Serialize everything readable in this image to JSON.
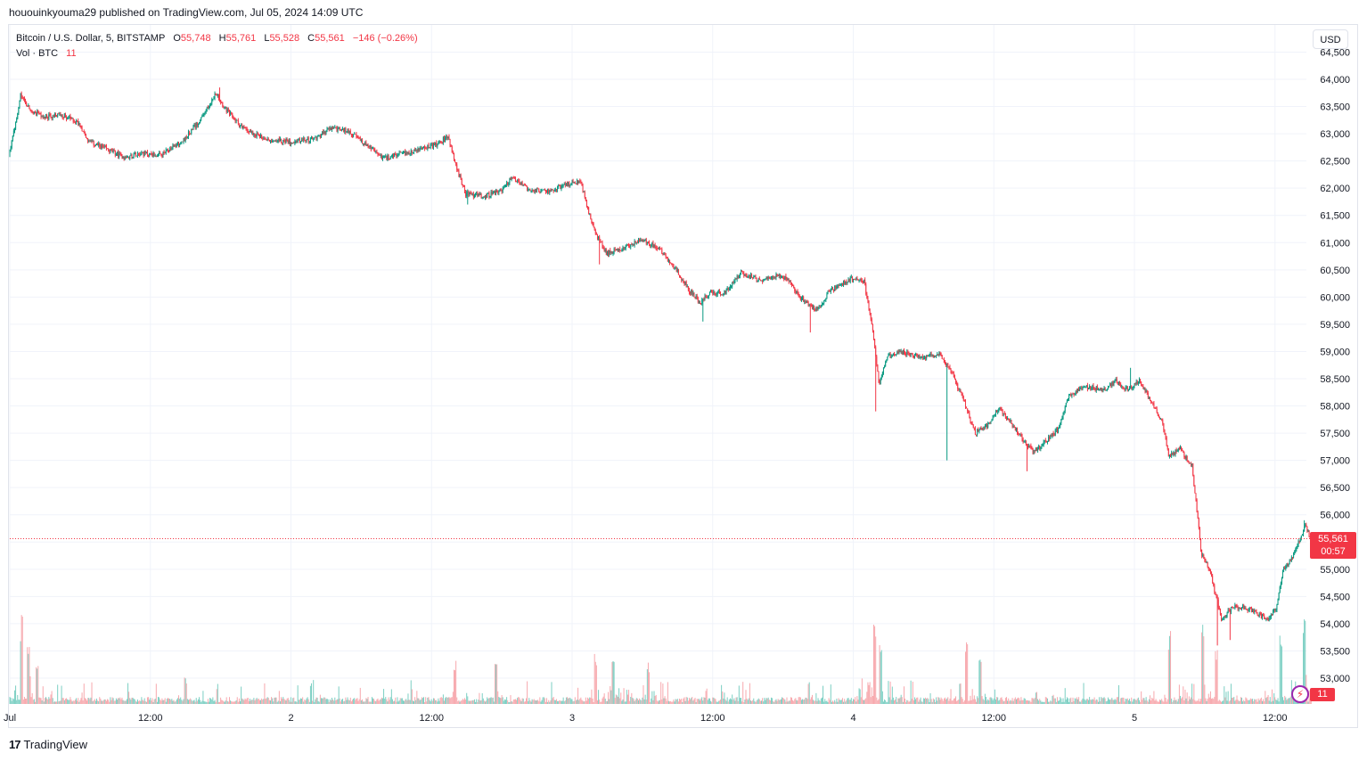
{
  "publish_line": "hououinkyouma29 published on TradingView.com, Jul 05, 2024 14:09 UTC",
  "legend": {
    "symbol": "Bitcoin / U.S. Dollar, 5, BITSTAMP",
    "o_label": "O",
    "o_value": "55,748",
    "h_label": "H",
    "h_value": "55,761",
    "l_label": "L",
    "l_value": "55,528",
    "c_label": "C",
    "c_value": "55,561",
    "change": "−146 (−0.26%)",
    "vol_label": "Vol · BTC",
    "vol_value": "11"
  },
  "currency": "USD",
  "last_price": {
    "value": "55,561",
    "countdown": "00:57"
  },
  "volume_badge": "11",
  "brand": {
    "logo": "17",
    "name": "TradingView"
  },
  "colors": {
    "up": "#089981",
    "down": "#f23645",
    "up_vol": "#7ccfc3",
    "down_vol": "#f7a8ad",
    "grid": "#f0f3fa"
  },
  "chart_data": {
    "type": "candlestick",
    "symbol": "BTCUSD",
    "exchange": "BITSTAMP",
    "interval": "5",
    "ylim": [
      52600,
      64500
    ],
    "yticks": [
      53000,
      53500,
      54000,
      54500,
      55000,
      55500,
      56000,
      56500,
      57000,
      57500,
      58000,
      58500,
      59000,
      59500,
      60000,
      60500,
      61000,
      61500,
      62000,
      62500,
      63000,
      63500,
      64000,
      64500
    ],
    "ytick_labels": [
      "53,000",
      "53,500",
      "54,000",
      "54,500",
      "55,000",
      "55,500",
      "56,000",
      "56,500",
      "57,000",
      "57,500",
      "58,000",
      "58,500",
      "59,000",
      "59,500",
      "60,000",
      "60,500",
      "61,000",
      "61,500",
      "62,000",
      "62,500",
      "63,000",
      "63,500",
      "64,000",
      "64,500"
    ],
    "x_ticks": [
      {
        "label": "Jul",
        "t": 0
      },
      {
        "label": "12:00",
        "t": 12
      },
      {
        "label": "2",
        "t": 24
      },
      {
        "label": "12:00",
        "t": 36
      },
      {
        "label": "3",
        "t": 48
      },
      {
        "label": "12:00",
        "t": 60
      },
      {
        "label": "4",
        "t": 72
      },
      {
        "label": "12:00",
        "t": 84
      },
      {
        "label": "5",
        "t": 96
      },
      {
        "label": "12:00",
        "t": 108
      }
    ],
    "xlim_hours": [
      0,
      111.2
    ],
    "price_path": [
      [
        0,
        62600
      ],
      [
        0.6,
        63200
      ],
      [
        1.0,
        63700
      ],
      [
        1.8,
        63450
      ],
      [
        3.0,
        63300
      ],
      [
        4.5,
        63350
      ],
      [
        6.0,
        63200
      ],
      [
        6.8,
        62850
      ],
      [
        8.0,
        62750
      ],
      [
        10.0,
        62550
      ],
      [
        11.0,
        62650
      ],
      [
        13.0,
        62600
      ],
      [
        15.0,
        62900
      ],
      [
        16.5,
        63300
      ],
      [
        17.7,
        63750
      ],
      [
        18.5,
        63450
      ],
      [
        20.0,
        63100
      ],
      [
        22.0,
        62900
      ],
      [
        24.0,
        62850
      ],
      [
        26.0,
        62900
      ],
      [
        27.5,
        63100
      ],
      [
        29.0,
        63050
      ],
      [
        30.5,
        62800
      ],
      [
        32.0,
        62550
      ],
      [
        34.0,
        62650
      ],
      [
        36.5,
        62800
      ],
      [
        37.5,
        62950
      ],
      [
        38.2,
        62400
      ],
      [
        39.0,
        61900
      ],
      [
        40.5,
        61850
      ],
      [
        42.0,
        61950
      ],
      [
        43.0,
        62200
      ],
      [
        44.5,
        61950
      ],
      [
        46.0,
        61950
      ],
      [
        47.5,
        62050
      ],
      [
        48.8,
        62150
      ],
      [
        49.3,
        61700
      ],
      [
        50.0,
        61200
      ],
      [
        51.0,
        60800
      ],
      [
        52.5,
        60900
      ],
      [
        54.0,
        61050
      ],
      [
        55.5,
        60900
      ],
      [
        57.0,
        60500
      ],
      [
        58.0,
        60150
      ],
      [
        59.0,
        59900
      ],
      [
        60.0,
        60100
      ],
      [
        61.0,
        60050
      ],
      [
        62.5,
        60450
      ],
      [
        64.0,
        60300
      ],
      [
        65.5,
        60400
      ],
      [
        66.5,
        60350
      ],
      [
        67.5,
        60000
      ],
      [
        69.0,
        59750
      ],
      [
        70.0,
        60100
      ],
      [
        72.0,
        60350
      ],
      [
        73.0,
        60300
      ],
      [
        73.8,
        59300
      ],
      [
        74.3,
        58400
      ],
      [
        75.0,
        58900
      ],
      [
        76.0,
        59000
      ],
      [
        78.0,
        58900
      ],
      [
        79.5,
        58950
      ],
      [
        80.5,
        58600
      ],
      [
        81.5,
        58100
      ],
      [
        82.5,
        57500
      ],
      [
        83.5,
        57650
      ],
      [
        84.5,
        57950
      ],
      [
        85.5,
        57700
      ],
      [
        86.5,
        57400
      ],
      [
        87.5,
        57150
      ],
      [
        88.5,
        57350
      ],
      [
        89.5,
        57550
      ],
      [
        90.5,
        58200
      ],
      [
        92.0,
        58350
      ],
      [
        93.5,
        58300
      ],
      [
        94.5,
        58450
      ],
      [
        95.5,
        58300
      ],
      [
        96.5,
        58450
      ],
      [
        97.5,
        58100
      ],
      [
        98.5,
        57700
      ],
      [
        99.0,
        57100
      ],
      [
        100.0,
        57200
      ],
      [
        101.0,
        56900
      ],
      [
        101.8,
        55300
      ],
      [
        102.5,
        55000
      ],
      [
        103.5,
        54100
      ],
      [
        104.5,
        54300
      ],
      [
        105.5,
        54300
      ],
      [
        106.5,
        54200
      ],
      [
        107.5,
        54050
      ],
      [
        108.2,
        54300
      ],
      [
        108.8,
        55000
      ],
      [
        109.5,
        55200
      ],
      [
        110.2,
        55550
      ],
      [
        110.7,
        55800
      ],
      [
        111.1,
        55561
      ]
    ],
    "spikes": [
      {
        "t": 73.9,
        "low": 57900
      },
      {
        "t": 80.0,
        "low": 57000
      },
      {
        "t": 86.8,
        "low": 56800
      },
      {
        "t": 59.2,
        "low": 59550
      },
      {
        "t": 68.3,
        "low": 59350
      },
      {
        "t": 103.1,
        "low": 53600
      },
      {
        "t": 104.2,
        "low": 53700
      },
      {
        "t": 50.3,
        "low": 60600
      },
      {
        "t": 39.1,
        "low": 61700
      },
      {
        "t": 17.9,
        "high": 63850
      },
      {
        "t": 95.7,
        "high": 58700
      },
      {
        "t": 110.5,
        "high": 55900
      }
    ],
    "last_close": 55561,
    "volume_max": 100,
    "volume_bursts": [
      {
        "t": 1.0,
        "v": 100
      },
      {
        "t": 1.6,
        "v": 70
      },
      {
        "t": 2.3,
        "v": 45
      },
      {
        "t": 15.0,
        "v": 30
      },
      {
        "t": 38.0,
        "v": 50
      },
      {
        "t": 41.5,
        "v": 45
      },
      {
        "t": 50.0,
        "v": 60
      },
      {
        "t": 51.5,
        "v": 55
      },
      {
        "t": 54.5,
        "v": 50
      },
      {
        "t": 73.8,
        "v": 95
      },
      {
        "t": 74.3,
        "v": 75
      },
      {
        "t": 81.7,
        "v": 70
      },
      {
        "t": 82.8,
        "v": 50
      },
      {
        "t": 99.0,
        "v": 85
      },
      {
        "t": 101.8,
        "v": 90
      },
      {
        "t": 103.0,
        "v": 70
      },
      {
        "t": 108.5,
        "v": 80
      },
      {
        "t": 110.5,
        "v": 100
      }
    ]
  }
}
